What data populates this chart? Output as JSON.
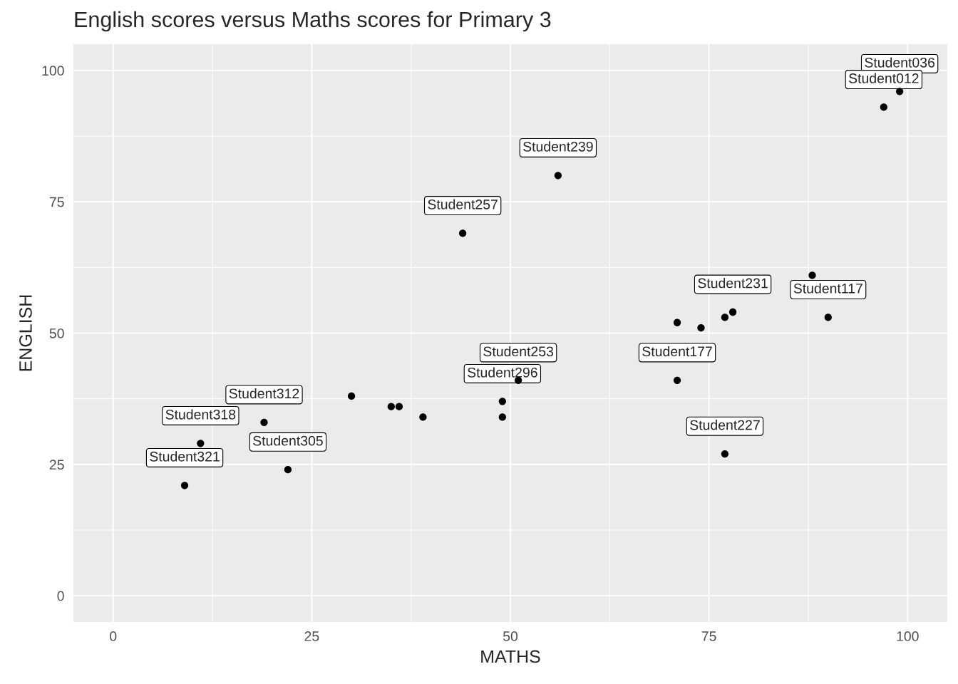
{
  "chart_data": {
    "type": "scatter",
    "title": "English scores versus Maths scores for Primary 3",
    "xlabel": "MATHS",
    "ylabel": "ENGLISH",
    "x": [
      9,
      22,
      30,
      35,
      36,
      39,
      49,
      49,
      71,
      74,
      77,
      78,
      71,
      77,
      90,
      88,
      11,
      19,
      51,
      44,
      56,
      97,
      99
    ],
    "values": [
      21,
      24,
      38,
      36,
      36,
      34,
      34,
      37,
      52,
      51,
      53,
      54,
      41,
      27,
      53,
      61,
      29,
      33,
      41,
      69,
      80,
      93,
      96
    ],
    "color": "#000000",
    "marker": "circle",
    "xlim": [
      -5,
      105
    ],
    "ylim": [
      -5,
      105
    ],
    "xticks": [
      0,
      25,
      50,
      75,
      100
    ],
    "yticks": [
      0,
      25,
      50,
      75,
      100
    ],
    "grid": true,
    "annotations": [
      {
        "text": "Student321",
        "x": 9,
        "y": 21
      },
      {
        "text": "Student305",
        "x": 22,
        "y": 24
      },
      {
        "text": "Student177",
        "x": 71,
        "y": 41
      },
      {
        "text": "Student227",
        "x": 77,
        "y": 27
      },
      {
        "text": "Student117",
        "x": 90,
        "y": 53
      },
      {
        "text": "Student231",
        "x": 78,
        "y": 54
      },
      {
        "text": "Student296",
        "x": 49,
        "y": 37
      },
      {
        "text": "Student318",
        "x": 11,
        "y": 29
      },
      {
        "text": "Student312",
        "x": 19,
        "y": 33
      },
      {
        "text": "Student253",
        "x": 51,
        "y": 41
      },
      {
        "text": "Student257",
        "x": 44,
        "y": 69
      },
      {
        "text": "Student239",
        "x": 56,
        "y": 80
      },
      {
        "text": "Student036",
        "x": 99,
        "y": 96
      },
      {
        "text": "Student012",
        "x": 97,
        "y": 93
      }
    ]
  }
}
